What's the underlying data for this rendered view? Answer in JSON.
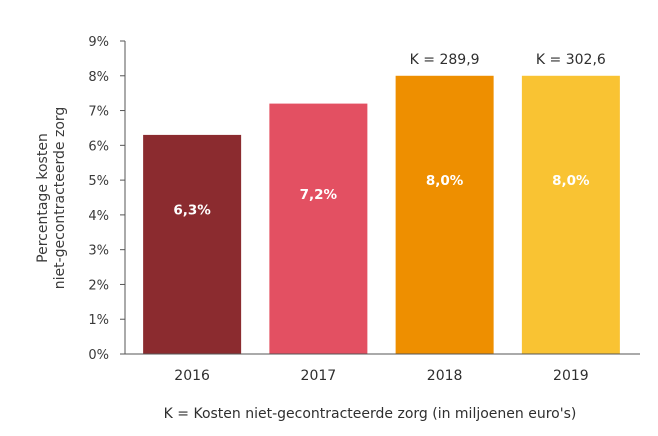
{
  "chart_data": {
    "type": "bar",
    "categories": [
      "2016",
      "2017",
      "2018",
      "2019"
    ],
    "values": [
      6.3,
      7.2,
      8.0,
      8.0
    ],
    "value_labels": [
      "6,3%",
      "7,2%",
      "8,0%",
      "8,0%"
    ],
    "top_labels": [
      "",
      "",
      "K = 289,9",
      "K = 302,6"
    ],
    "bar_colors": [
      "#8b2b2f",
      "#e35062",
      "#ee8f00",
      "#f9c333"
    ],
    "ylabel_lines": [
      "Percentage kosten",
      "niet-gecontracteerde zorg"
    ],
    "ylim": [
      0,
      9
    ],
    "yticks": [
      0,
      1,
      2,
      3,
      4,
      5,
      6,
      7,
      8,
      9
    ],
    "ytick_labels": [
      "0%",
      "1%",
      "2%",
      "3%",
      "4%",
      "5%",
      "6%",
      "7%",
      "8%",
      "9%"
    ],
    "footnote": "K = Kosten niet-gecontracteerde zorg (in miljoenen euro's)",
    "grid": false
  }
}
